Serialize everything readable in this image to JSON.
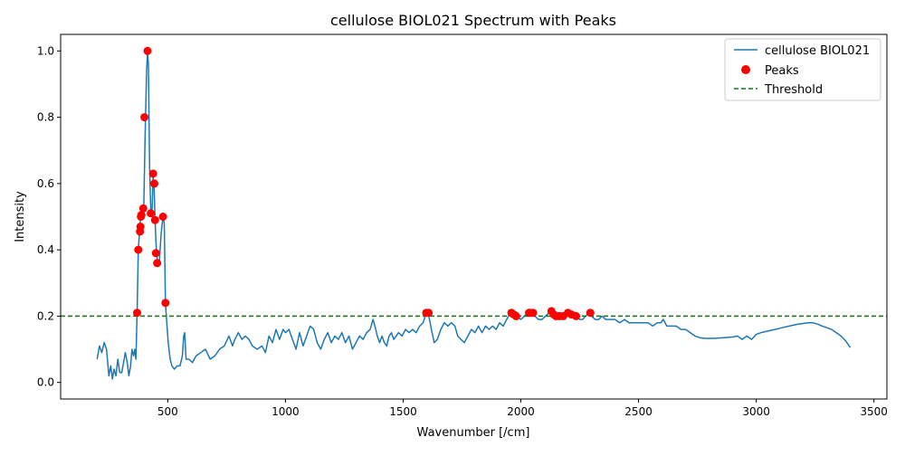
{
  "chart_data": {
    "type": "line",
    "title": "cellulose BIOL021 Spectrum with Peaks",
    "xlabel": "Wavenumber [/cm]",
    "ylabel": "Intensity",
    "xlim": [
      45,
      3555
    ],
    "ylim": [
      -0.05,
      1.05
    ],
    "xticks": [
      500,
      1000,
      1500,
      2000,
      2500,
      3000,
      3500
    ],
    "xtick_labels": [
      "500",
      "1000",
      "1500",
      "2000",
      "2500",
      "3000",
      "3500"
    ],
    "yticks": [
      0.0,
      0.2,
      0.4,
      0.6,
      0.8,
      1.0
    ],
    "ytick_labels": [
      "0.0",
      "0.2",
      "0.4",
      "0.6",
      "0.8",
      "1.0"
    ],
    "grid": false,
    "legend_position": "top-right",
    "threshold": 0.2,
    "series": [
      {
        "name": "cellulose BIOL021",
        "kind": "line",
        "color": "#1f77b4",
        "points": [
          [
            200,
            0.07
          ],
          [
            210,
            0.11
          ],
          [
            220,
            0.09
          ],
          [
            230,
            0.12
          ],
          [
            240,
            0.1
          ],
          [
            250,
            0.02
          ],
          [
            258,
            0.05
          ],
          [
            265,
            0.01
          ],
          [
            272,
            0.04
          ],
          [
            280,
            0.02
          ],
          [
            288,
            0.07
          ],
          [
            296,
            0.03
          ],
          [
            305,
            0.03
          ],
          [
            312,
            0.06
          ],
          [
            320,
            0.09
          ],
          [
            328,
            0.06
          ],
          [
            335,
            0.02
          ],
          [
            342,
            0.05
          ],
          [
            348,
            0.1
          ],
          [
            355,
            0.08
          ],
          [
            360,
            0.1
          ],
          [
            365,
            0.07
          ],
          [
            370,
            0.21
          ],
          [
            375,
            0.4
          ],
          [
            380,
            0.45
          ],
          [
            385,
            0.5
          ],
          [
            392,
            0.51
          ],
          [
            398,
            0.52
          ],
          [
            404,
            0.75
          ],
          [
            410,
            0.93
          ],
          [
            414,
            1.0
          ],
          [
            418,
            0.96
          ],
          [
            423,
            0.65
          ],
          [
            428,
            0.52
          ],
          [
            433,
            0.51
          ],
          [
            438,
            0.62
          ],
          [
            442,
            0.59
          ],
          [
            446,
            0.49
          ],
          [
            452,
            0.39
          ],
          [
            458,
            0.36
          ],
          [
            465,
            0.37
          ],
          [
            472,
            0.45
          ],
          [
            480,
            0.5
          ],
          [
            485,
            0.48
          ],
          [
            490,
            0.24
          ],
          [
            496,
            0.18
          ],
          [
            502,
            0.12
          ],
          [
            510,
            0.07
          ],
          [
            518,
            0.05
          ],
          [
            528,
            0.04
          ],
          [
            540,
            0.05
          ],
          [
            552,
            0.05
          ],
          [
            562,
            0.08
          ],
          [
            568,
            0.14
          ],
          [
            572,
            0.15
          ],
          [
            578,
            0.07
          ],
          [
            590,
            0.07
          ],
          [
            605,
            0.06
          ],
          [
            620,
            0.08
          ],
          [
            640,
            0.09
          ],
          [
            660,
            0.1
          ],
          [
            680,
            0.07
          ],
          [
            700,
            0.08
          ],
          [
            720,
            0.1
          ],
          [
            740,
            0.11
          ],
          [
            760,
            0.14
          ],
          [
            775,
            0.11
          ],
          [
            785,
            0.13
          ],
          [
            800,
            0.15
          ],
          [
            815,
            0.13
          ],
          [
            830,
            0.14
          ],
          [
            845,
            0.13
          ],
          [
            860,
            0.11
          ],
          [
            880,
            0.1
          ],
          [
            900,
            0.11
          ],
          [
            915,
            0.09
          ],
          [
            930,
            0.14
          ],
          [
            945,
            0.12
          ],
          [
            960,
            0.16
          ],
          [
            975,
            0.13
          ],
          [
            990,
            0.16
          ],
          [
            1000,
            0.15
          ],
          [
            1015,
            0.16
          ],
          [
            1030,
            0.13
          ],
          [
            1045,
            0.1
          ],
          [
            1060,
            0.15
          ],
          [
            1075,
            0.11
          ],
          [
            1090,
            0.14
          ],
          [
            1105,
            0.17
          ],
          [
            1120,
            0.16
          ],
          [
            1135,
            0.12
          ],
          [
            1150,
            0.1
          ],
          [
            1165,
            0.13
          ],
          [
            1180,
            0.15
          ],
          [
            1195,
            0.12
          ],
          [
            1210,
            0.14
          ],
          [
            1225,
            0.13
          ],
          [
            1240,
            0.15
          ],
          [
            1255,
            0.12
          ],
          [
            1270,
            0.14
          ],
          [
            1285,
            0.1
          ],
          [
            1300,
            0.12
          ],
          [
            1315,
            0.14
          ],
          [
            1330,
            0.13
          ],
          [
            1345,
            0.15
          ],
          [
            1360,
            0.16
          ],
          [
            1372,
            0.19
          ],
          [
            1380,
            0.17
          ],
          [
            1390,
            0.14
          ],
          [
            1400,
            0.12
          ],
          [
            1410,
            0.14
          ],
          [
            1420,
            0.12
          ],
          [
            1430,
            0.11
          ],
          [
            1440,
            0.14
          ],
          [
            1450,
            0.15
          ],
          [
            1460,
            0.13
          ],
          [
            1470,
            0.14
          ],
          [
            1480,
            0.15
          ],
          [
            1495,
            0.14
          ],
          [
            1510,
            0.16
          ],
          [
            1525,
            0.15
          ],
          [
            1540,
            0.16
          ],
          [
            1555,
            0.15
          ],
          [
            1570,
            0.17
          ],
          [
            1585,
            0.18
          ],
          [
            1598,
            0.21
          ],
          [
            1605,
            0.21
          ],
          [
            1612,
            0.19
          ],
          [
            1620,
            0.16
          ],
          [
            1632,
            0.12
          ],
          [
            1645,
            0.13
          ],
          [
            1660,
            0.16
          ],
          [
            1675,
            0.18
          ],
          [
            1690,
            0.17
          ],
          [
            1705,
            0.18
          ],
          [
            1720,
            0.17
          ],
          [
            1732,
            0.14
          ],
          [
            1745,
            0.13
          ],
          [
            1760,
            0.12
          ],
          [
            1775,
            0.14
          ],
          [
            1790,
            0.16
          ],
          [
            1805,
            0.15
          ],
          [
            1820,
            0.17
          ],
          [
            1835,
            0.15
          ],
          [
            1850,
            0.17
          ],
          [
            1865,
            0.16
          ],
          [
            1880,
            0.17
          ],
          [
            1895,
            0.16
          ],
          [
            1910,
            0.18
          ],
          [
            1925,
            0.17
          ],
          [
            1940,
            0.19
          ],
          [
            1955,
            0.21
          ],
          [
            1965,
            0.2
          ],
          [
            1975,
            0.21
          ],
          [
            1985,
            0.2
          ],
          [
            2000,
            0.19
          ],
          [
            2015,
            0.2
          ],
          [
            2030,
            0.21
          ],
          [
            2040,
            0.21
          ],
          [
            2050,
            0.21
          ],
          [
            2060,
            0.2
          ],
          [
            2075,
            0.19
          ],
          [
            2090,
            0.19
          ],
          [
            2105,
            0.2
          ],
          [
            2120,
            0.21
          ],
          [
            2130,
            0.21
          ],
          [
            2140,
            0.2
          ],
          [
            2150,
            0.2
          ],
          [
            2160,
            0.21
          ],
          [
            2170,
            0.2
          ],
          [
            2180,
            0.2
          ],
          [
            2190,
            0.2
          ],
          [
            2200,
            0.21
          ],
          [
            2212,
            0.2
          ],
          [
            2225,
            0.2
          ],
          [
            2238,
            0.2
          ],
          [
            2250,
            0.19
          ],
          [
            2262,
            0.19
          ],
          [
            2275,
            0.2
          ],
          [
            2290,
            0.21
          ],
          [
            2300,
            0.2
          ],
          [
            2315,
            0.19
          ],
          [
            2330,
            0.19
          ],
          [
            2345,
            0.2
          ],
          [
            2360,
            0.19
          ],
          [
            2380,
            0.19
          ],
          [
            2400,
            0.19
          ],
          [
            2420,
            0.18
          ],
          [
            2440,
            0.19
          ],
          [
            2460,
            0.18
          ],
          [
            2480,
            0.18
          ],
          [
            2500,
            0.18
          ],
          [
            2520,
            0.18
          ],
          [
            2540,
            0.18
          ],
          [
            2560,
            0.17
          ],
          [
            2580,
            0.18
          ],
          [
            2595,
            0.18
          ],
          [
            2605,
            0.19
          ],
          [
            2620,
            0.17
          ],
          [
            2640,
            0.17
          ],
          [
            2660,
            0.17
          ],
          [
            2680,
            0.16
          ],
          [
            2700,
            0.16
          ],
          [
            2720,
            0.15
          ],
          [
            2740,
            0.14
          ],
          [
            2760,
            0.135
          ],
          [
            2780,
            0.133
          ],
          [
            2800,
            0.133
          ],
          [
            2820,
            0.133
          ],
          [
            2840,
            0.134
          ],
          [
            2860,
            0.135
          ],
          [
            2880,
            0.136
          ],
          [
            2900,
            0.137
          ],
          [
            2920,
            0.14
          ],
          [
            2940,
            0.13
          ],
          [
            2960,
            0.14
          ],
          [
            2980,
            0.13
          ],
          [
            3000,
            0.145
          ],
          [
            3020,
            0.15
          ],
          [
            3050,
            0.155
          ],
          [
            3080,
            0.16
          ],
          [
            3110,
            0.165
          ],
          [
            3140,
            0.17
          ],
          [
            3170,
            0.175
          ],
          [
            3200,
            0.178
          ],
          [
            3220,
            0.18
          ],
          [
            3240,
            0.18
          ],
          [
            3260,
            0.176
          ],
          [
            3280,
            0.17
          ],
          [
            3300,
            0.165
          ],
          [
            3320,
            0.16
          ],
          [
            3340,
            0.15
          ],
          [
            3360,
            0.14
          ],
          [
            3380,
            0.125
          ],
          [
            3395,
            0.11
          ],
          [
            3400,
            0.105
          ]
        ]
      },
      {
        "name": "Peaks",
        "kind": "scatter",
        "color": "#ff0000",
        "points": [
          [
            370,
            0.21
          ],
          [
            375,
            0.4
          ],
          [
            382,
            0.455
          ],
          [
            384,
            0.47
          ],
          [
            386,
            0.5
          ],
          [
            388,
            0.505
          ],
          [
            396,
            0.525
          ],
          [
            401,
            0.8
          ],
          [
            414,
            1.0
          ],
          [
            428,
            0.51
          ],
          [
            438,
            0.63
          ],
          [
            443,
            0.6
          ],
          [
            446,
            0.49
          ],
          [
            450,
            0.39
          ],
          [
            455,
            0.36
          ],
          [
            480,
            0.5
          ],
          [
            490,
            0.24
          ],
          [
            1598,
            0.21
          ],
          [
            1608,
            0.21
          ],
          [
            1960,
            0.21
          ],
          [
            1970,
            0.205
          ],
          [
            1980,
            0.2
          ],
          [
            2035,
            0.21
          ],
          [
            2040,
            0.21
          ],
          [
            2052,
            0.21
          ],
          [
            2130,
            0.215
          ],
          [
            2140,
            0.205
          ],
          [
            2150,
            0.2
          ],
          [
            2165,
            0.2
          ],
          [
            2180,
            0.2
          ],
          [
            2200,
            0.21
          ],
          [
            2215,
            0.205
          ],
          [
            2235,
            0.2
          ],
          [
            2295,
            0.21
          ]
        ]
      },
      {
        "name": "Threshold",
        "kind": "hline",
        "color": "#008000",
        "y": 0.2
      }
    ]
  }
}
